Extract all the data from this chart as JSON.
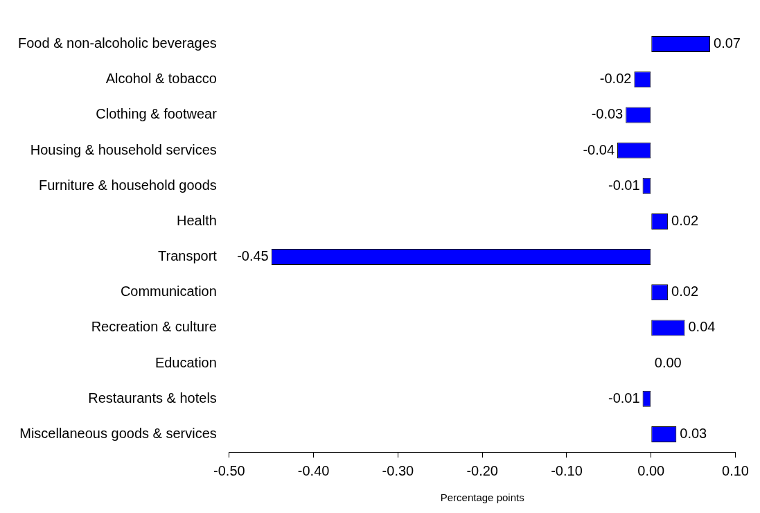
{
  "chart_data": {
    "type": "bar",
    "orientation": "horizontal",
    "xlabel": "Percentage points",
    "categories": [
      "Food & non-alcoholic beverages",
      "Alcohol & tobacco",
      "Clothing & footwear",
      "Housing & household services",
      "Furniture & household goods",
      "Health",
      "Transport",
      "Communication",
      "Recreation & culture",
      "Education",
      "Restaurants & hotels",
      "Miscellaneous goods & services"
    ],
    "values": [
      0.07,
      -0.02,
      -0.03,
      -0.04,
      -0.01,
      0.02,
      -0.45,
      0.02,
      0.04,
      0,
      -0.01,
      0.03
    ],
    "value_labels": [
      "0.07",
      "-0.02",
      "-0.03",
      "-0.04",
      "-0.01",
      "0.02",
      "-0.45",
      "0.02",
      "0.04",
      "0.00",
      "-0.01",
      "0.03"
    ],
    "color": "#0000ff",
    "xlim": [
      -0.5,
      0.1
    ],
    "xticks": [
      {
        "value": -0.5,
        "label": "-0.50"
      },
      {
        "value": -0.4,
        "label": "-0.40"
      },
      {
        "value": -0.3,
        "label": "-0.30"
      },
      {
        "value": -0.2,
        "label": "-0.20"
      },
      {
        "value": -0.1,
        "label": "-0.10"
      },
      {
        "value": 0,
        "label": "0.00"
      },
      {
        "value": 0.1,
        "label": "0.10"
      }
    ],
    "grid": false,
    "legend": false
  }
}
